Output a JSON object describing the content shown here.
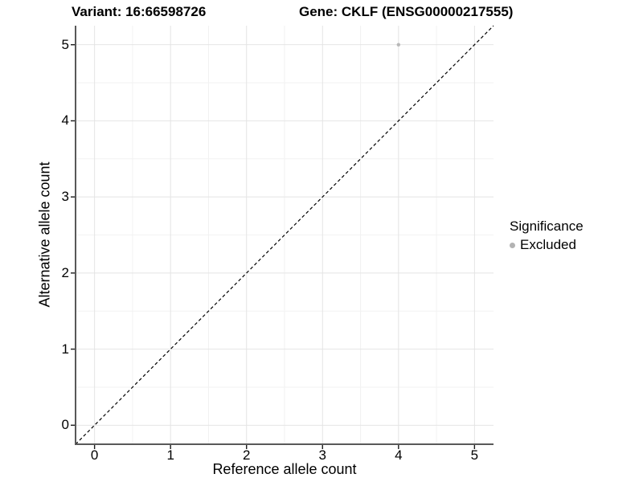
{
  "titles": {
    "variant": "Variant: 16:66598726",
    "gene": "Gene: CKLF (ENSG00000217555)"
  },
  "axes": {
    "x": {
      "label": "Reference allele count",
      "ticks": [
        "0",
        "1",
        "2",
        "3",
        "4",
        "5"
      ]
    },
    "y": {
      "label": "Alternative allele count",
      "ticks": [
        "0",
        "1",
        "2",
        "3",
        "4",
        "5"
      ]
    }
  },
  "legend": {
    "title": "Significance",
    "items": [
      {
        "label": "Excluded",
        "color": "#b3b3b3"
      }
    ]
  },
  "colors": {
    "background": "#ffffff",
    "grid_major": "#e4e4e4",
    "grid_minor": "#f2f2f2",
    "axis_line": "#595959",
    "tick_mark": "#1a1a1a",
    "text": "#000000",
    "point": "#b8b8b8"
  },
  "chart_data": {
    "type": "scatter",
    "title": "Variant: 16:66598726 — Gene: CKLF (ENSG00000217555)",
    "xlabel": "Reference allele count",
    "ylabel": "Alternative allele count",
    "xlim": [
      -0.25,
      5.25
    ],
    "ylim": [
      -0.25,
      5.25
    ],
    "major_ticks": [
      0,
      1,
      2,
      3,
      4,
      5
    ],
    "minor_ticks": [
      0.5,
      1.5,
      2.5,
      3.5,
      4.5
    ],
    "grid": "on",
    "legend_position": "right",
    "series": [
      {
        "name": "Excluded",
        "color": "#b8b8b8",
        "point_radius": 2.2,
        "points": [
          [
            4,
            5
          ]
        ]
      }
    ],
    "reference_line": {
      "style": "dashed",
      "color": "#000000",
      "from": [
        -0.25,
        -0.25
      ],
      "to": [
        5.25,
        5.25
      ]
    }
  }
}
